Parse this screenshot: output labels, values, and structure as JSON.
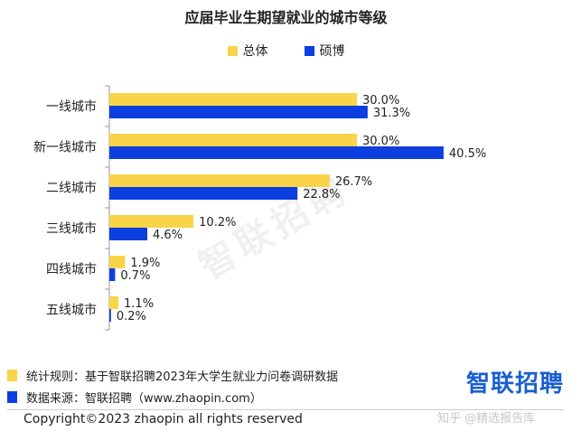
{
  "title": "应届毕业生期望就业的城市等级",
  "legend": [
    {
      "label": "总体",
      "color": "#f9d449"
    },
    {
      "label": "硕博",
      "color": "#0d3ee0"
    }
  ],
  "chart_data": {
    "type": "bar",
    "orientation": "horizontal",
    "categories": [
      "一线城市",
      "新一线城市",
      "二线城市",
      "三线城市",
      "四线城市",
      "五线城市"
    ],
    "series": [
      {
        "name": "总体",
        "color": "#f9d449",
        "values": [
          30.0,
          30.0,
          26.7,
          10.2,
          1.9,
          1.1
        ],
        "labels": [
          "30.0%",
          "30.0%",
          "26.7%",
          "10.2%",
          "1.9%",
          "1.1%"
        ]
      },
      {
        "name": "硕博",
        "color": "#0d3ee0",
        "values": [
          31.3,
          40.5,
          22.8,
          4.6,
          0.7,
          0.2
        ],
        "labels": [
          "31.3%",
          "40.5%",
          "22.8%",
          "4.6%",
          "0.7%",
          "0.2%"
        ]
      }
    ],
    "xlim": [
      0,
      45
    ],
    "grid": false,
    "legend_position": "top"
  },
  "notes": [
    {
      "text": "统计规则：基于智联招聘2023年大学生就业力问卷调研数据",
      "color": "#f9d449"
    },
    {
      "text": "数据来源：智联招聘（www.zhaopin.com）",
      "color": "#0d3ee0"
    }
  ],
  "brand_logo": "智联招聘",
  "background_watermark": "智联招聘",
  "copyright": "Copyright©2023 zhaopin all rights reserved",
  "watermark": "知乎 @精选报告库"
}
